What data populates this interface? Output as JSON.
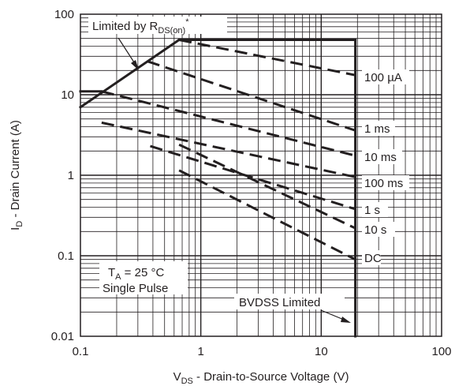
{
  "chart_data": {
    "type": "line",
    "scale": {
      "x": "log",
      "y": "log"
    },
    "xlim": [
      0.1,
      100
    ],
    "ylim": [
      0.01,
      100
    ],
    "grid": true,
    "x_ticks": [
      "0.1",
      "1",
      "10",
      "100"
    ],
    "y_ticks": [
      "0.01",
      "0.1",
      "1",
      "10",
      "100"
    ],
    "xlabel": {
      "main": "V",
      "sub": "DS",
      "rest": " - Drain-to-Source Voltage (V)"
    },
    "ylabel": {
      "main": "I",
      "sub": "D",
      "rest": " - Drain Current (A)"
    },
    "boundaries": {
      "rds_on_limit": {
        "x": [
          0.1,
          0.66
        ],
        "y": [
          7.0,
          48
        ]
      },
      "current_limit": {
        "x": [
          0.66,
          19.2
        ],
        "y": [
          48,
          48
        ]
      },
      "bvdss_limit": {
        "x": [
          19.2,
          19.2
        ],
        "y": [
          0.01,
          48
        ]
      },
      "dc_current_limit": {
        "x": [
          0.1,
          0.15
        ],
        "y": [
          11,
          11
        ]
      }
    },
    "series": [
      {
        "name": "100 µA",
        "x": [
          0.66,
          19.2
        ],
        "y": [
          48,
          17.5
        ]
      },
      {
        "name": "1 ms",
        "x": [
          0.36,
          19.2
        ],
        "y": [
          26,
          3.6
        ]
      },
      {
        "name": "10 ms",
        "x": [
          0.15,
          19.2
        ],
        "y": [
          11,
          1.75
        ]
      },
      {
        "name": "100 ms",
        "x": [
          0.15,
          19.2
        ],
        "y": [
          4.5,
          0.95
        ]
      },
      {
        "name": "1 s",
        "x": [
          0.38,
          19.2
        ],
        "y": [
          2.3,
          0.38
        ]
      },
      {
        "name": "10 s",
        "x": [
          0.66,
          19.2
        ],
        "y": [
          2.4,
          0.22
        ]
      },
      {
        "name": "DC",
        "x": [
          0.66,
          19.2
        ],
        "y": [
          1.15,
          0.09
        ]
      }
    ],
    "annotations": {
      "rds_on": {
        "text": "Limited by R",
        "sub": "DS(on)",
        "sup": "*"
      },
      "conditions": {
        "line1_main": "T",
        "line1_sub": "A",
        "line1_rest": " = 25 °C",
        "line2": "Single Pulse"
      },
      "bvdss": "BVDSS Limited"
    }
  }
}
